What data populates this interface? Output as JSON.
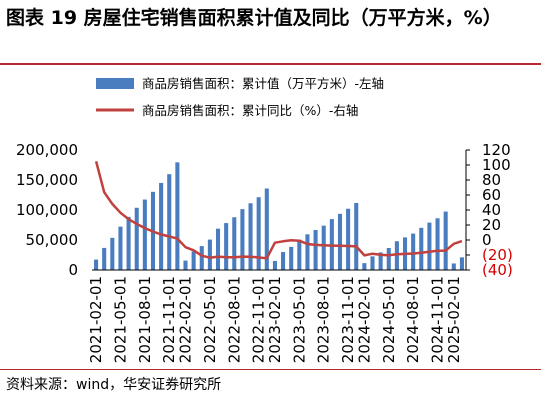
{
  "title": "图表 19 房屋住宅销售面积累计值及同比（万平方米，%）",
  "source": "资料来源：wind，华安证券研究所",
  "colors": {
    "bar": "#4a7cc0",
    "line": "#c0413e",
    "rule": "#b6282c",
    "negative_tick": "#d40000"
  },
  "chart_data": {
    "type": "bar+line",
    "legend": [
      {
        "label": "商品房销售面积：累计值（万平方米）-左轴",
        "kind": "bar"
      },
      {
        "label": "商品房销售面积：累计同比（%）-右轴",
        "kind": "line"
      }
    ],
    "left_axis": {
      "ticks": [
        "0",
        "50,000",
        "100,000",
        "150,000",
        "200,000"
      ],
      "ylim": [
        0,
        200000
      ]
    },
    "right_axis": {
      "ticks": [
        "(40)",
        "(20)",
        "0",
        "20",
        "40",
        "60",
        "80",
        "100",
        "120"
      ],
      "ylim": [
        -40,
        120
      ],
      "negative_format": "parentheses"
    },
    "x": [
      "2021-02",
      "2021-03",
      "2021-04",
      "2021-05",
      "2021-06",
      "2021-07",
      "2021-08",
      "2021-09",
      "2021-10",
      "2021-11",
      "2021-12",
      "2022-02",
      "2022-03",
      "2022-04",
      "2022-05",
      "2022-06",
      "2022-07",
      "2022-08",
      "2022-09",
      "2022-10",
      "2022-11",
      "2022-12",
      "2023-02",
      "2023-03",
      "2023-04",
      "2023-05",
      "2023-06",
      "2023-07",
      "2023-08",
      "2023-09",
      "2023-10",
      "2023-11",
      "2023-12",
      "2024-02",
      "2024-03",
      "2024-04",
      "2024-05",
      "2024-06",
      "2024-07",
      "2024-08",
      "2024-09",
      "2024-10",
      "2024-11",
      "2024-12",
      "2025-02",
      "2025-03"
    ],
    "x_tick_labels": [
      "2021-02-01",
      "2021-05-01",
      "2021-08-01",
      "2021-11-01",
      "2022-02-01",
      "2022-05-01",
      "2022-08-01",
      "2022-11-01",
      "2023-02-01",
      "2023-05-01",
      "2023-08-01",
      "2023-11-01",
      "2024-02-01",
      "2024-05-01",
      "2024-08-01",
      "2024-11-01",
      "2025-02-01"
    ],
    "series": [
      {
        "name": "商品房销售面积：累计值（万平方米）-左轴",
        "type": "bar",
        "axis": "left",
        "values": [
          17300,
          36800,
          53600,
          72300,
          88600,
          103700,
          117400,
          130300,
          145100,
          159700,
          179400,
          15700,
          31000,
          39800,
          50700,
          68900,
          78200,
          87900,
          101400,
          111200,
          121300,
          135800,
          15100,
          29900,
          38500,
          50600,
          59500,
          66600,
          73900,
          84800,
          93600,
          102100,
          111700,
          11400,
          22700,
          29300,
          36600,
          47900,
          54300,
          60700,
          70300,
          79000,
          86200,
          97400,
          10900,
          21100
        ]
      },
      {
        "name": "商品房销售面积：累计同比（%）-右轴",
        "type": "line",
        "axis": "right",
        "values": [
          104.9,
          63.8,
          48.1,
          36.3,
          27.7,
          21.5,
          15.9,
          11.3,
          7.3,
          4.8,
          1.9,
          -9.6,
          -13.8,
          -20.9,
          -23.6,
          -22.2,
          -23.1,
          -23.0,
          -22.2,
          -22.3,
          -23.3,
          -24.3,
          -3.6,
          -1.8,
          -0.4,
          -0.9,
          -5.3,
          -6.5,
          -7.1,
          -7.5,
          -7.8,
          -8.0,
          -8.5,
          -20.5,
          -18.3,
          -19.8,
          -20.3,
          -19.0,
          -18.6,
          -18.0,
          -17.1,
          -15.8,
          -14.3,
          -14.1,
          -5.1,
          -1.5
        ]
      }
    ]
  }
}
